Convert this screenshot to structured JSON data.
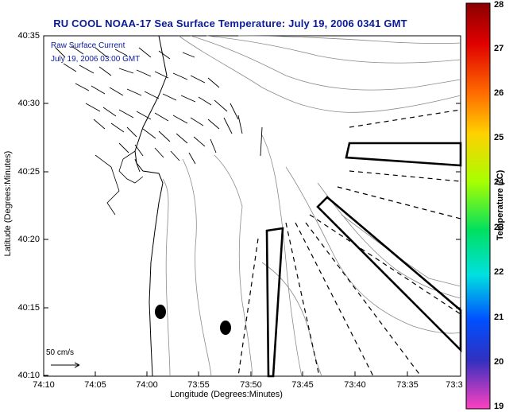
{
  "header": {
    "title": "RU COOL  NOAA-17  Sea Surface Temperature:  July 19, 2006 0341 GMT"
  },
  "axes": {
    "ylabel": "Latitude (Degrees:Minutes)",
    "xlabel": "Longitude (Degrees:Minutes)",
    "yticks": [
      "40:35",
      "40:30",
      "40:25",
      "40:20",
      "40:15",
      "40:10"
    ],
    "xticks": [
      "74:10",
      "74:05",
      "74:00",
      "73:55",
      "73:50",
      "73:45",
      "73:40",
      "73:35",
      "73:3"
    ]
  },
  "legend": {
    "raw_label": "Raw Surface Current",
    "timestamp": "July 19, 2006 03:00 GMT",
    "scale_label": "50 cm/s"
  },
  "colorbar": {
    "label": "Temperature (°C)",
    "ticks": [
      "28",
      "27",
      "26",
      "25",
      "24",
      "23",
      "22",
      "21",
      "20",
      "19"
    ],
    "min": 19,
    "max": 28
  },
  "chart_data": {
    "type": "map",
    "xlim": [
      "74:10",
      "73:30"
    ],
    "ylim": [
      "40:10",
      "40:35"
    ],
    "colorbar_range": [
      19,
      28
    ]
  }
}
